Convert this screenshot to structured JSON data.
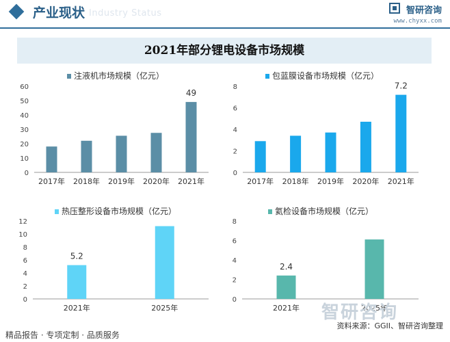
{
  "header": {
    "title": "产业现状",
    "ghost_text": "Industry Status",
    "brand_name": "智研咨询",
    "brand_url": "www.chyxx.com"
  },
  "main_title": "2021年部分锂电设备市场规模",
  "colors": {
    "header_blue": "#2f6e9b",
    "injection": "#5b8ea6",
    "packaging": "#1aa8ec",
    "heatpress": "#5fd4f7",
    "helium": "#58b7ac"
  },
  "watermark_char": "智研",
  "chart_data": [
    {
      "type": "bar",
      "legend": "注液机市场规模（亿元）",
      "categories": [
        "2017年",
        "2018年",
        "2019年",
        "2020年",
        "2021年"
      ],
      "values": [
        18,
        22,
        25.5,
        27.5,
        49
      ],
      "data_labels": [
        "",
        "",
        "",
        "",
        "49"
      ],
      "yticks": [
        "0",
        "10",
        "20",
        "30",
        "40",
        "50",
        "60"
      ],
      "ylim": [
        0,
        60
      ]
    },
    {
      "type": "bar",
      "legend": "包蓝膜设备市场规模（亿元）",
      "categories": [
        "2017年",
        "2018年",
        "2019年",
        "2020年",
        "2021年"
      ],
      "values": [
        2.9,
        3.4,
        3.7,
        4.7,
        7.2
      ],
      "data_labels": [
        "",
        "",
        "",
        "",
        "7.2"
      ],
      "yticks": [
        "0",
        "2",
        "4",
        "6",
        "8"
      ],
      "ylim": [
        0,
        8
      ]
    },
    {
      "type": "bar",
      "legend": "热压整形设备市场规模（亿元）",
      "categories": [
        "2021年",
        "2025年"
      ],
      "values": [
        5.2,
        11.2
      ],
      "data_labels": [
        "5.2",
        ""
      ],
      "yticks": [
        "0",
        "2",
        "4",
        "6",
        "8",
        "10",
        "12"
      ],
      "ylim": [
        0,
        12
      ]
    },
    {
      "type": "bar",
      "legend": "氦检设备市场规模（亿元）",
      "categories": [
        "2021年",
        "2025年"
      ],
      "values": [
        2.4,
        6.1
      ],
      "data_labels": [
        "2.4",
        ""
      ],
      "yticks": [
        "0",
        "2",
        "4",
        "6",
        "8"
      ],
      "ylim": [
        0,
        8
      ]
    }
  ],
  "footer": {
    "left": "精品报告 · 专项定制 · 品质服务",
    "source": "资料来源：GGII、智研咨询整理",
    "big_brand": "智研咨询"
  }
}
